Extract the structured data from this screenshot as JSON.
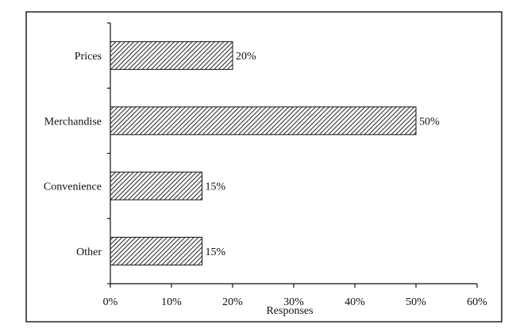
{
  "chart_data": {
    "type": "bar",
    "orientation": "horizontal",
    "categories": [
      "Prices",
      "Merchandise",
      "Convenience",
      "Other"
    ],
    "values": [
      20,
      50,
      15,
      15
    ],
    "data_labels": [
      "20%",
      "50%",
      "15%",
      "15%"
    ],
    "title": "",
    "xlabel": "Responses",
    "ylabel": "",
    "xlim": [
      0,
      60
    ],
    "x_ticks": [
      0,
      10,
      20,
      30,
      40,
      50,
      60
    ],
    "x_tick_labels": [
      "0%",
      "10%",
      "20%",
      "30%",
      "40%",
      "50%",
      "60%"
    ],
    "grid": false,
    "legend": "none",
    "bar_pattern": "diagonal-hatch",
    "colors": {
      "bar_fill": "#ffffff",
      "bar_hatch": "#333333",
      "axis": "#111111",
      "frame": "#222222"
    }
  }
}
